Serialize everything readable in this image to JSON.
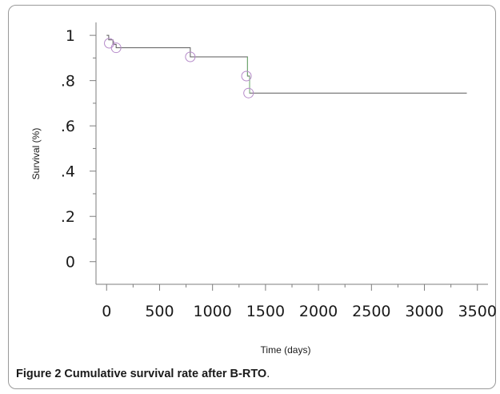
{
  "caption": {
    "label": "Figure 2",
    "text": " Cumulative survival rate after B-RTO",
    "suffix": "."
  },
  "chart_data": {
    "type": "line",
    "title": "",
    "xlabel": "Time (days)",
    "ylabel": "Survival (%)",
    "xlim": [
      -100,
      3600
    ],
    "ylim": [
      -0.1,
      1.05
    ],
    "x_ticks": [
      0,
      500,
      1000,
      1500,
      2000,
      2500,
      3000,
      3500
    ],
    "x_tick_labels": [
      "0",
      "500",
      "1000",
      "1500",
      "2000",
      "2500",
      "3000",
      "3500"
    ],
    "y_ticks": [
      0,
      0.2,
      0.4,
      0.6,
      0.8,
      1.0
    ],
    "y_tick_labels": [
      "0",
      ".2",
      ".4",
      ".6",
      ".8",
      "1"
    ],
    "grid": false,
    "series": [
      {
        "style": "step",
        "color": "#5a5a5a",
        "points": [
          {
            "x": 0,
            "y": 1.0
          },
          {
            "x": 20,
            "y": 0.98
          },
          {
            "x": 60,
            "y": 0.96
          },
          {
            "x": 90,
            "y": 0.945
          },
          {
            "x": 780,
            "y": 0.945
          },
          {
            "x": 790,
            "y": 0.905
          },
          {
            "x": 1320,
            "y": 0.905
          },
          {
            "x": 1330,
            "y": 0.82
          },
          {
            "x": 1350,
            "y": 0.745
          },
          {
            "x": 3400,
            "y": 0.745
          }
        ]
      }
    ],
    "censored": [
      {
        "x": 25,
        "y": 0.965
      },
      {
        "x": 90,
        "y": 0.945
      },
      {
        "x": 790,
        "y": 0.905
      },
      {
        "x": 1320,
        "y": 0.82
      },
      {
        "x": 1340,
        "y": 0.745
      }
    ],
    "censor_color": "#b58ac9",
    "accent_color": "#6fae6f"
  }
}
